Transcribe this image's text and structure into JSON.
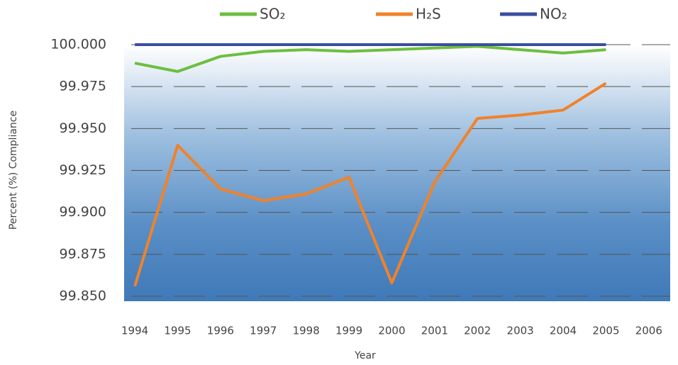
{
  "chart_data": {
    "type": "line",
    "x_label": "Year",
    "y_label": "Percent (%) Compliance",
    "x": [
      1994,
      1995,
      1996,
      1997,
      1998,
      1999,
      2000,
      2001,
      2002,
      2003,
      2004,
      2005,
      2006
    ],
    "xlim": [
      1993.75,
      2006.5
    ],
    "xticks": [
      1994,
      1995,
      1996,
      1997,
      1998,
      1999,
      2000,
      2001,
      2002,
      2003,
      2004,
      2005,
      2006
    ],
    "ylim": [
      99.85,
      100.0
    ],
    "yticks": [
      {
        "value": 99.85,
        "label": "99.850"
      },
      {
        "value": 99.875,
        "label": "99.875"
      },
      {
        "value": 99.9,
        "label": "99.900"
      },
      {
        "value": 99.925,
        "label": "99.925"
      },
      {
        "value": 99.95,
        "label": "99.950"
      },
      {
        "value": 99.975,
        "label": "99.975"
      },
      {
        "value": 100.0,
        "label": "100.000"
      }
    ],
    "grid": true,
    "legend": "top",
    "series": [
      {
        "name": "SO₂",
        "color": "#6cbf3f",
        "values": [
          99.989,
          99.984,
          99.993,
          99.996,
          99.997,
          99.996,
          99.997,
          99.998,
          99.999,
          99.997,
          99.995,
          99.997,
          null
        ]
      },
      {
        "name": "H₂S",
        "color": "#f0822a",
        "values": [
          99.856,
          99.94,
          99.914,
          99.907,
          99.911,
          99.921,
          99.858,
          99.918,
          99.956,
          99.958,
          99.961,
          99.977,
          null
        ]
      },
      {
        "name": "NO₂",
        "color": "#3a4ea0",
        "values": [
          100.0,
          100.0,
          100.0,
          100.0,
          100.0,
          100.0,
          100.0,
          100.0,
          100.0,
          100.0,
          100.0,
          100.0,
          null
        ]
      }
    ]
  }
}
